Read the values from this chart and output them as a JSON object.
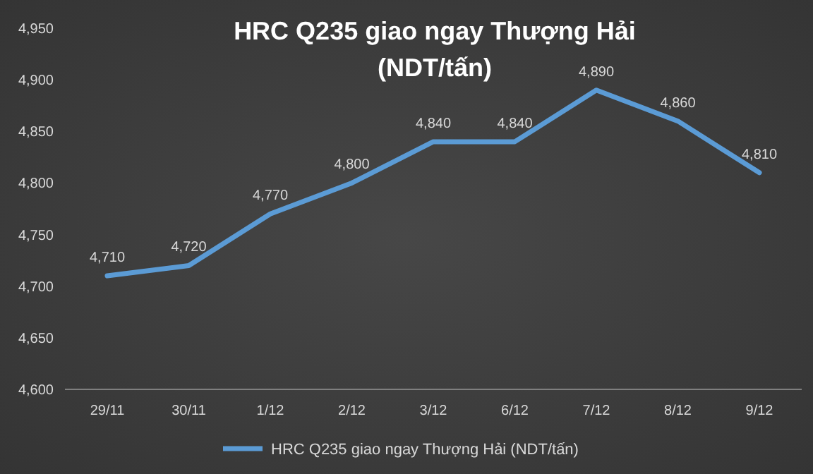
{
  "chart_data": {
    "type": "line",
    "title": "HRC Q235 giao ngay Thượng Hải\n(NDT/tấn)",
    "categories": [
      "29/11",
      "30/11",
      "1/12",
      "2/12",
      "3/12",
      "6/12",
      "7/12",
      "8/12",
      "9/12"
    ],
    "series": [
      {
        "name": "HRC Q235 giao ngay Thượng Hải (NDT/tấn)",
        "color": "#5b9bd5",
        "values": [
          4710,
          4720,
          4770,
          4800,
          4840,
          4840,
          4890,
          4860,
          4810
        ],
        "value_labels": [
          "4,710",
          "4,720",
          "4,770",
          "4,800",
          "4,840",
          "4,840",
          "4,890",
          "4,860",
          "4,810"
        ]
      }
    ],
    "ylim": [
      4600,
      4950
    ],
    "yticks": [
      {
        "value": 4600,
        "label": "4,600"
      },
      {
        "value": 4650,
        "label": "4,650"
      },
      {
        "value": 4700,
        "label": "4,700"
      },
      {
        "value": 4750,
        "label": "4,750"
      },
      {
        "value": 4800,
        "label": "4,800"
      },
      {
        "value": 4850,
        "label": "4,850"
      },
      {
        "value": 4900,
        "label": "4,900"
      },
      {
        "value": 4950,
        "label": "4,950"
      }
    ],
    "legend": "bottom",
    "marker": "none",
    "line_style": "solid"
  }
}
